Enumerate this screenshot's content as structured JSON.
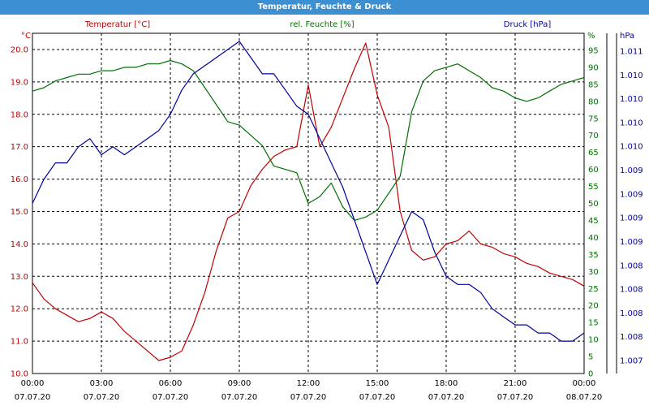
{
  "window": {
    "title": "Temperatur, Feuchte & Druck"
  },
  "chart_data": {
    "type": "line",
    "title": "",
    "x_ticks": {
      "times": [
        "00:00",
        "03:00",
        "06:00",
        "09:00",
        "12:00",
        "15:00",
        "18:00",
        "21:00",
        "00:00"
      ],
      "dates": [
        "07.07.20",
        "07.07.20",
        "07.07.20",
        "07.07.20",
        "07.07.20",
        "07.07.20",
        "07.07.20",
        "07.07.20",
        "08.07.20"
      ]
    },
    "x_range_hours": [
      0,
      24
    ],
    "grid": true,
    "axes": {
      "temperature": {
        "label": "Temperatur [°C]",
        "unit": "°C",
        "color": "#c00000",
        "range": [
          10.0,
          20.5
        ],
        "ticks": [
          "10.0",
          "11.0",
          "12.0",
          "13.0",
          "14.0",
          "15.0",
          "16.0",
          "17.0",
          "18.0",
          "19.0",
          "20.0"
        ]
      },
      "humidity": {
        "label": "rel. Feuchte [%]",
        "unit": "%",
        "color": "#007000",
        "range": [
          0,
          100
        ],
        "ticks": [
          "0",
          "5",
          "10",
          "15",
          "20",
          "25",
          "30",
          "35",
          "40",
          "45",
          "50",
          "55",
          "60",
          "65",
          "70",
          "75",
          "80",
          "85",
          "90",
          "95"
        ]
      },
      "pressure": {
        "label": "Druck [hPa]",
        "unit": "hPa",
        "color": "#0000a0",
        "range": [
          1006.9,
          1011.1
        ],
        "ticks": [
          "1.007",
          "1.008",
          "1.008",
          "1.008",
          "1.008",
          "1.009",
          "1.009",
          "1.009",
          "1.009",
          "1.010",
          "1.010",
          "1.010",
          "1.010",
          "1.011"
        ]
      }
    },
    "series": [
      {
        "name": "Temperatur [°C]",
        "axis": "temperature",
        "color": "#c00000",
        "x": [
          0,
          0.5,
          1,
          1.5,
          2,
          2.5,
          3,
          3.5,
          4,
          4.5,
          5,
          5.5,
          6,
          6.5,
          7,
          7.5,
          8,
          8.5,
          9,
          9.5,
          10,
          10.5,
          11,
          11.5,
          12,
          12.5,
          13,
          13.5,
          14,
          14.5,
          15,
          15.5,
          16,
          16.5,
          17,
          17.5,
          18,
          18.5,
          19,
          19.5,
          20,
          20.5,
          21,
          21.5,
          22,
          22.5,
          23,
          23.5,
          24
        ],
        "y": [
          12.8,
          12.3,
          12.0,
          11.8,
          11.6,
          11.7,
          11.9,
          11.7,
          11.3,
          11.0,
          10.7,
          10.4,
          10.5,
          10.7,
          11.5,
          12.5,
          13.8,
          14.8,
          15.0,
          15.8,
          16.3,
          16.7,
          16.9,
          17.0,
          18.9,
          17.0,
          17.6,
          18.5,
          19.4,
          20.2,
          18.6,
          17.6,
          15.0,
          13.8,
          13.5,
          13.6,
          14.0,
          14.1,
          14.4,
          14.0,
          13.9,
          13.7,
          13.6,
          13.4,
          13.3,
          13.1,
          13.0,
          12.9,
          12.7
        ]
      },
      {
        "name": "rel. Feuchte [%]",
        "axis": "humidity",
        "color": "#007000",
        "x": [
          0,
          0.5,
          1,
          1.5,
          2,
          2.5,
          3,
          3.5,
          4,
          4.5,
          5,
          5.5,
          6,
          6.5,
          7,
          7.5,
          8,
          8.5,
          9,
          9.5,
          10,
          10.5,
          11,
          11.5,
          12,
          12.5,
          13,
          13.5,
          14,
          14.5,
          15,
          15.5,
          16,
          16.5,
          17,
          17.5,
          18,
          18.5,
          19,
          19.5,
          20,
          20.5,
          21,
          21.5,
          22,
          22.5,
          23,
          23.5,
          24
        ],
        "y": [
          83,
          84,
          86,
          87,
          88,
          88,
          89,
          89,
          90,
          90,
          91,
          91,
          92,
          91,
          89,
          84,
          79,
          74,
          73,
          70,
          67,
          61,
          60,
          59,
          50,
          52,
          56,
          49,
          45,
          46,
          48,
          53,
          58,
          77,
          86,
          89,
          90,
          91,
          89,
          87,
          84,
          83,
          81,
          80,
          81,
          83,
          85,
          86,
          87
        ]
      },
      {
        "name": "Druck [hPa]",
        "axis": "pressure",
        "color": "#0000a0",
        "x": [
          0,
          0.5,
          1,
          1.5,
          2,
          2.5,
          3,
          3.5,
          4,
          4.5,
          5,
          5.5,
          6,
          6.5,
          7,
          7.5,
          8,
          8.5,
          9,
          9.5,
          10,
          10.5,
          11,
          11.5,
          12,
          12.5,
          13,
          13.5,
          14,
          14.5,
          15,
          15.5,
          16,
          16.5,
          17,
          17.5,
          18,
          18.5,
          19,
          19.5,
          20,
          20.5,
          21,
          21.5,
          22,
          22.5,
          23,
          23.5,
          24
        ],
        "y": [
          1009.0,
          1009.3,
          1009.5,
          1009.5,
          1009.7,
          1009.8,
          1009.6,
          1009.7,
          1009.6,
          1009.7,
          1009.8,
          1009.9,
          1010.1,
          1010.4,
          1010.6,
          1010.7,
          1010.8,
          1010.9,
          1011.0,
          1010.8,
          1010.6,
          1010.6,
          1010.4,
          1010.2,
          1010.1,
          1009.8,
          1009.5,
          1009.2,
          1008.8,
          1008.4,
          1008.0,
          1008.3,
          1008.6,
          1008.9,
          1008.8,
          1008.4,
          1008.1,
          1008.0,
          1008.0,
          1007.9,
          1007.7,
          1007.6,
          1007.5,
          1007.5,
          1007.4,
          1007.4,
          1007.3,
          1007.3,
          1007.4
        ]
      }
    ]
  }
}
